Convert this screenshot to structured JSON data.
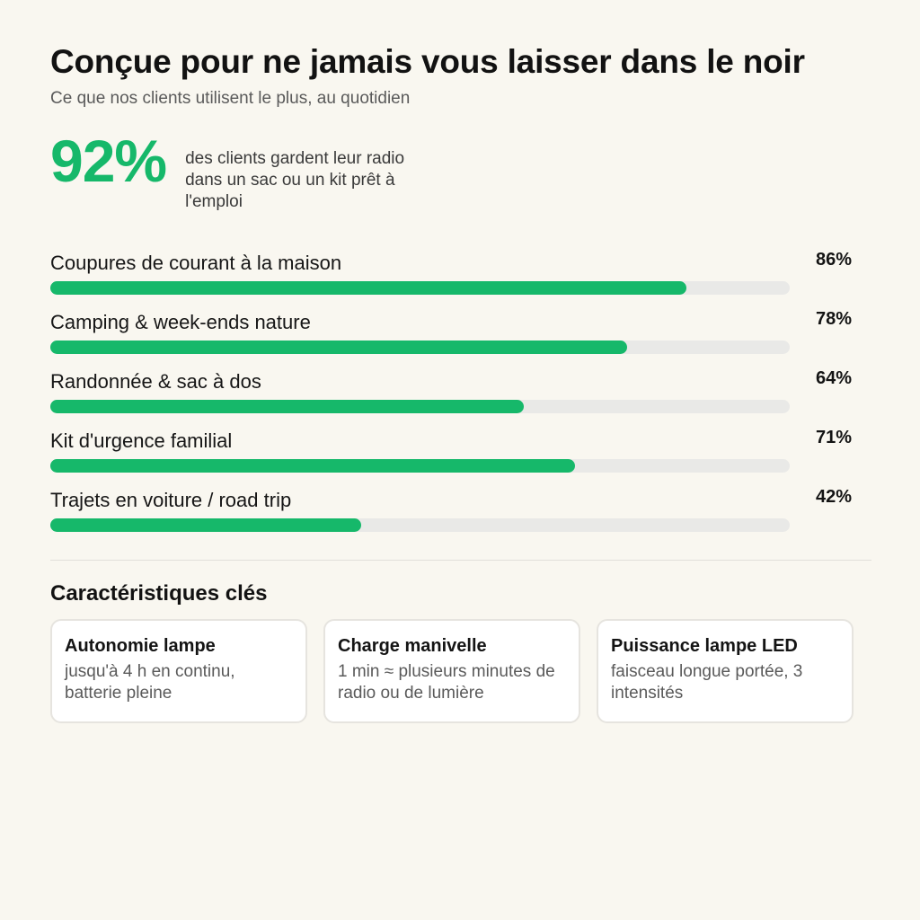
{
  "header": {
    "title": "Conçue pour ne jamais vous laisser dans le noir",
    "subtitle": "Ce que nos clients utilisent le plus, au quotidien"
  },
  "headline": {
    "stat": "92%",
    "description": "des clients gardent leur radio dans un sac ou un kit prêt à l'emploi"
  },
  "chart_data": {
    "type": "bar",
    "orientation": "horizontal",
    "categories": [
      "Coupures de courant à la maison",
      "Camping & week-ends nature",
      "Randonnée & sac à dos",
      "Kit d'urgence familial",
      "Trajets en voiture / road trip"
    ],
    "values": [
      86,
      78,
      64,
      71,
      42
    ],
    "value_labels": [
      "86%",
      "78%",
      "64%",
      "71%",
      "42%"
    ],
    "xlim": [
      0,
      100
    ],
    "title": "",
    "xlabel": "",
    "ylabel": "",
    "grid": false,
    "colors": {
      "bar": "#16b86a",
      "track": "#e9e9e7"
    }
  },
  "features": {
    "title": "Caractéristiques clés",
    "cards": [
      {
        "title": "Autonomie lampe",
        "text": "jusqu'à 4 h en continu, batterie pleine"
      },
      {
        "title": "Charge manivelle",
        "text": "1 min ≈ plusieurs minutes de radio ou de lumière"
      },
      {
        "title": "Puissance lampe LED",
        "text": "faisceau longue portée, 3 intensités"
      }
    ]
  },
  "colors": {
    "accent": "#16b86a",
    "background": "#f9f7f0"
  }
}
